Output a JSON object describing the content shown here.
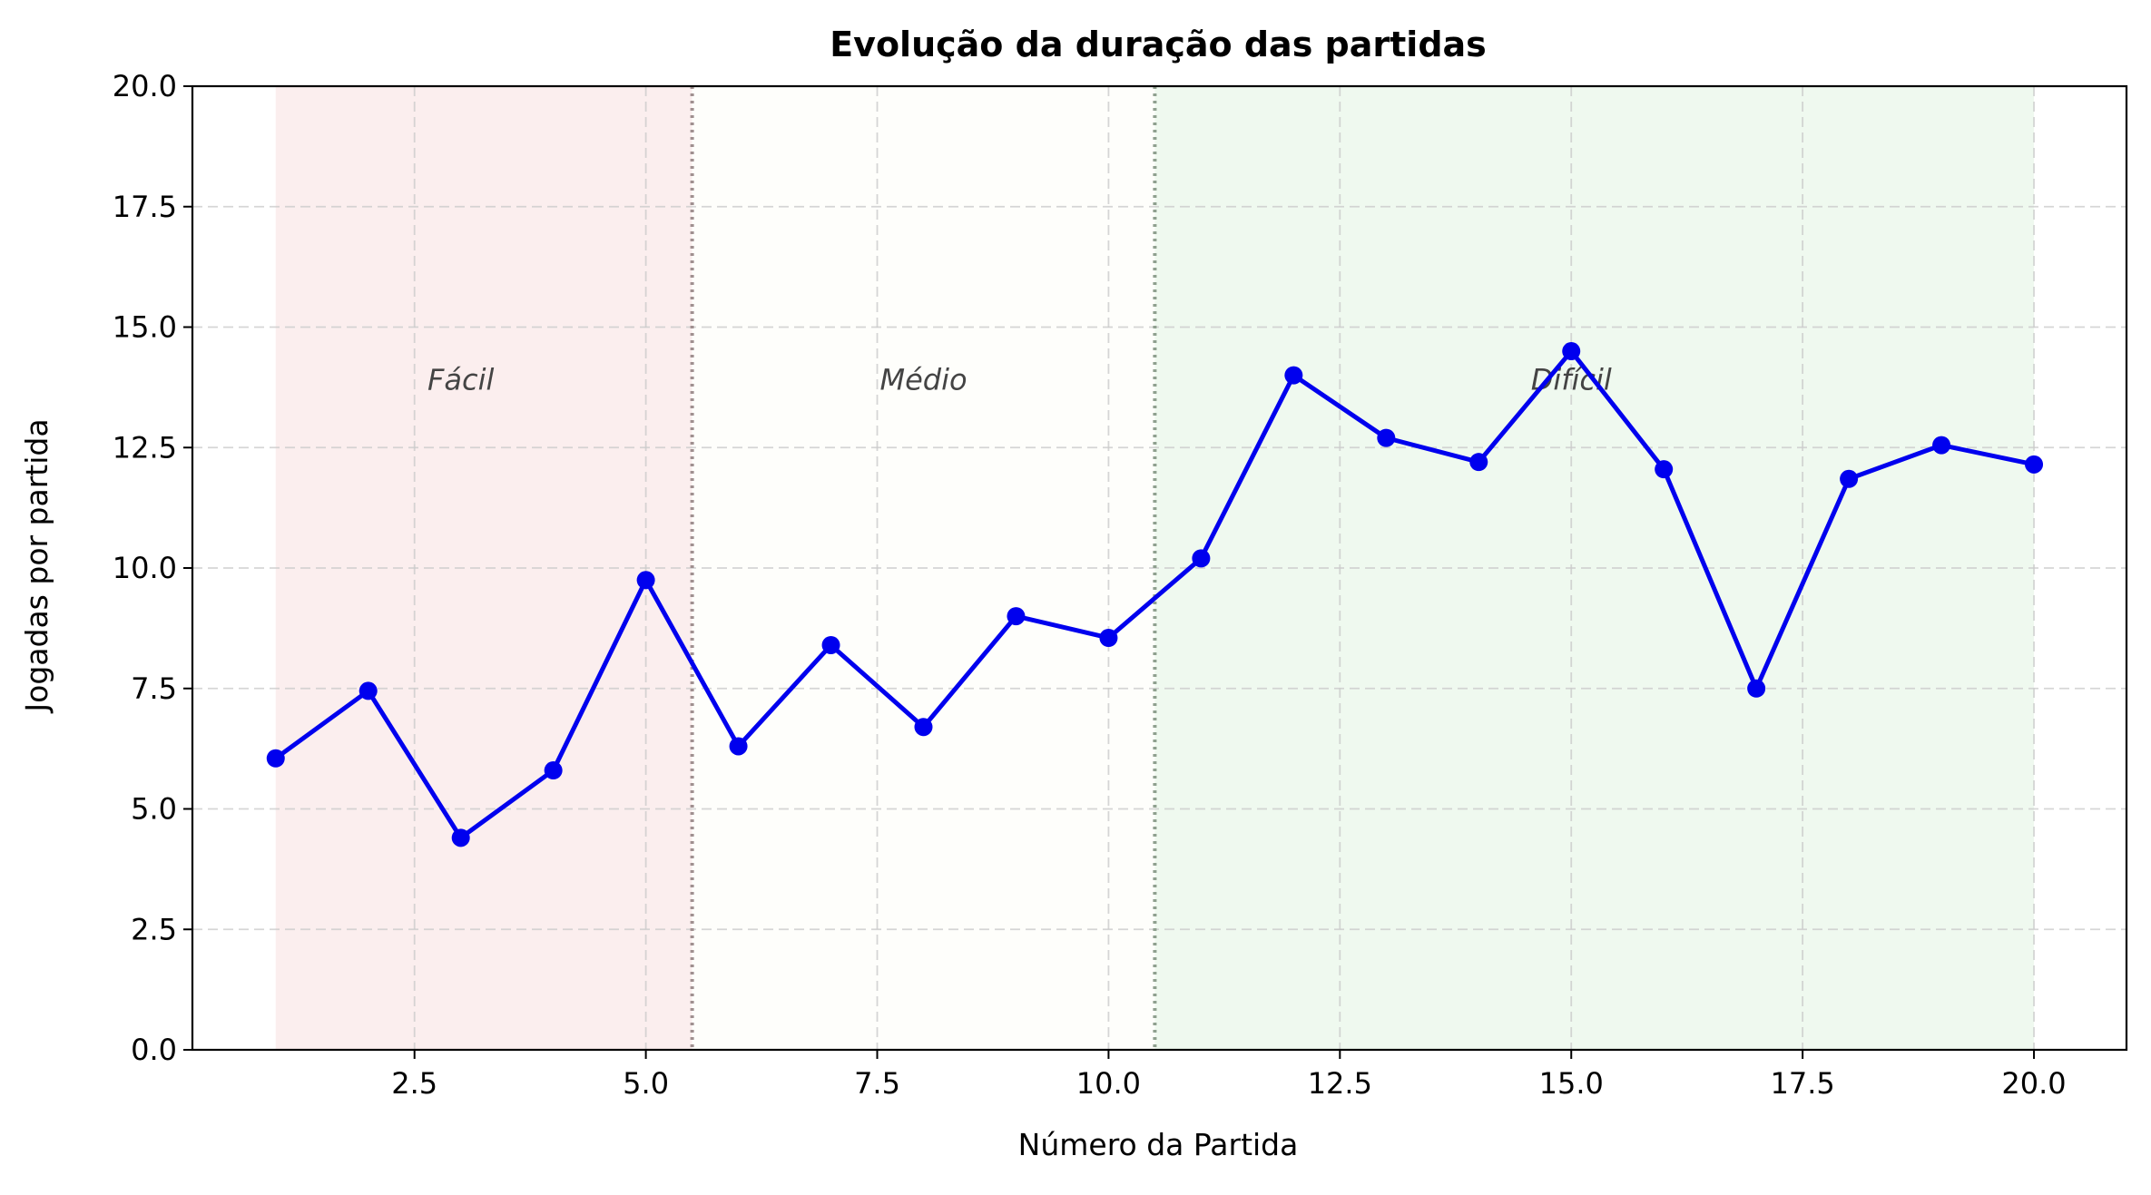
{
  "chart_data": {
    "type": "line",
    "title": "Evolução da duração das partidas",
    "xlabel": "Número da Partida",
    "ylabel": "Jogadas por partida",
    "xlim": [
      0.1,
      21.0
    ],
    "ylim": [
      0,
      20
    ],
    "grid": true,
    "xticks": [
      "2.5",
      "5.0",
      "7.5",
      "10.0",
      "12.5",
      "15.0",
      "17.5",
      "20.0"
    ],
    "yticks": [
      "0.0",
      "2.5",
      "5.0",
      "7.5",
      "10.0",
      "12.5",
      "15.0",
      "17.5",
      "20.0"
    ],
    "series": [
      {
        "color": "#0000ee",
        "x": [
          1,
          2,
          3,
          4,
          5,
          6,
          7,
          8,
          9,
          10,
          11,
          12,
          13,
          14,
          15,
          16,
          17,
          18,
          19,
          20
        ],
        "y": [
          6.05,
          7.45,
          4.4,
          5.8,
          9.75,
          6.3,
          8.4,
          6.7,
          9.0,
          8.55,
          10.2,
          14.0,
          12.7,
          12.2,
          14.5,
          12.05,
          7.5,
          11.85,
          12.55,
          12.15
        ]
      }
    ],
    "regions": [
      {
        "label": "Fácil",
        "x0": 1,
        "x1": 5.5,
        "fill": "#fbeeee",
        "line_color": "#a09090",
        "label_x": 3.0
      },
      {
        "label": "Médio",
        "x0": 5.5,
        "x1": 10.5,
        "fill": "#fefefb",
        "line_color": "#8fa08f",
        "label_x": 8.0
      },
      {
        "label": "Difícil",
        "x0": 10.5,
        "x1": 20,
        "fill": "#eff9ef",
        "line_color": null,
        "label_x": 15.0
      }
    ],
    "region_label_y": 13.7
  }
}
